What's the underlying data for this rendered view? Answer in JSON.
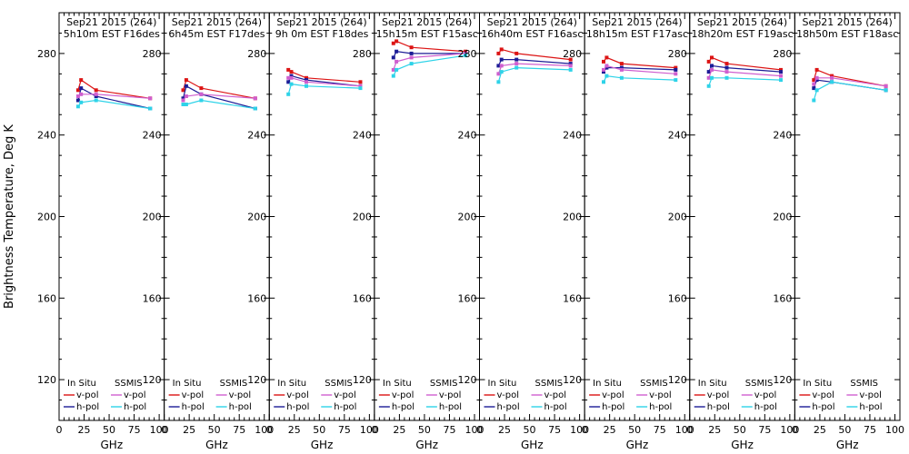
{
  "figure": {
    "background": "#ffffff",
    "axis_color": "#000000"
  },
  "legend": {
    "columns": [
      "In Situ",
      "SSMIS"
    ],
    "rows": [
      "v-pol",
      "h-pol"
    ]
  },
  "chart_data": {
    "type": "line",
    "xlabel": "GHz",
    "ylabel": "Brightness Temperature, Deg K",
    "x": [
      19,
      22,
      37,
      91
    ],
    "xlim": [
      0,
      105
    ],
    "ylim": [
      100,
      300
    ],
    "xticks": [
      0,
      25,
      50,
      75,
      100
    ],
    "yticks": [
      120,
      160,
      200,
      240,
      280
    ],
    "grid": false,
    "legend_position": "bottom-inside-each-panel",
    "series_defs": [
      {
        "key": "insitu_vpol",
        "name": "In Situ v-pol",
        "color": "#dc1414"
      },
      {
        "key": "insitu_hpol",
        "name": "In Situ h-pol",
        "color": "#1c1c96"
      },
      {
        "key": "ssmis_vpol",
        "name": "SSMIS v-pol",
        "color": "#cf5fcf"
      },
      {
        "key": "ssmis_hpol",
        "name": "SSMIS h-pol",
        "color": "#2ed3e8"
      }
    ],
    "panels": [
      {
        "title_line1": "Sep21 2015 (264)",
        "title_line2": "5h10m EST F16des",
        "insitu_vpol": [
          262,
          267,
          262,
          258
        ],
        "insitu_hpol": [
          257,
          263,
          259,
          253
        ],
        "ssmis_vpol": [
          259,
          260,
          260,
          258
        ],
        "ssmis_hpol": [
          254,
          256,
          257,
          253
        ]
      },
      {
        "title_line1": "Sep21 2015 (264)",
        "title_line2": "6h45m EST F17des",
        "insitu_vpol": [
          262,
          267,
          263,
          258
        ],
        "insitu_hpol": [
          258,
          264,
          260,
          253
        ],
        "ssmis_vpol": [
          257,
          259,
          260,
          258
        ],
        "ssmis_hpol": [
          255,
          255,
          257,
          253
        ]
      },
      {
        "title_line1": "Sep21 2015 (264)",
        "title_line2": "9h 0m EST F18des",
        "insitu_vpol": [
          272,
          271,
          268,
          266
        ],
        "insitu_hpol": [
          266,
          269,
          267,
          264
        ],
        "ssmis_vpol": [
          268,
          268,
          266,
          264
        ],
        "ssmis_hpol": [
          260,
          265,
          264,
          263
        ]
      },
      {
        "title_line1": "Sep21 2015 (264)",
        "title_line2": "15h15m EST F15asc",
        "insitu_vpol": [
          285,
          286,
          283,
          281
        ],
        "insitu_hpol": [
          278,
          281,
          280,
          280
        ],
        "ssmis_vpol": [
          272,
          276,
          278,
          280
        ],
        "ssmis_hpol": [
          269,
          272,
          275,
          279
        ]
      },
      {
        "title_line1": "Sep21 2015 (264)",
        "title_line2": "16h40m EST F16asc",
        "insitu_vpol": [
          280,
          282,
          280,
          277
        ],
        "insitu_hpol": [
          274,
          277,
          277,
          275
        ],
        "ssmis_vpol": [
          270,
          274,
          275,
          274
        ],
        "ssmis_hpol": [
          266,
          271,
          273,
          272
        ]
      },
      {
        "title_line1": "Sep21 2015 (264)",
        "title_line2": "18h15m EST F17asc",
        "insitu_vpol": [
          276,
          278,
          275,
          273
        ],
        "insitu_hpol": [
          271,
          273,
          273,
          272
        ],
        "ssmis_vpol": [
          272,
          274,
          272,
          270
        ],
        "ssmis_hpol": [
          266,
          269,
          268,
          267
        ]
      },
      {
        "title_line1": "Sep21 2015 (264)",
        "title_line2": "18h20m EST F19asc",
        "insitu_vpol": [
          276,
          278,
          275,
          272
        ],
        "insitu_hpol": [
          271,
          274,
          273,
          271
        ],
        "ssmis_vpol": [
          268,
          272,
          271,
          269
        ],
        "ssmis_hpol": [
          264,
          268,
          268,
          267
        ]
      },
      {
        "title_line1": "Sep21 2015 (264)",
        "title_line2": "18h50m EST F18asc",
        "insitu_vpol": [
          267,
          272,
          269,
          264
        ],
        "insitu_hpol": [
          263,
          267,
          266,
          262
        ],
        "ssmis_vpol": [
          265,
          268,
          268,
          264
        ],
        "ssmis_hpol": [
          257,
          262,
          266,
          262
        ]
      }
    ]
  }
}
